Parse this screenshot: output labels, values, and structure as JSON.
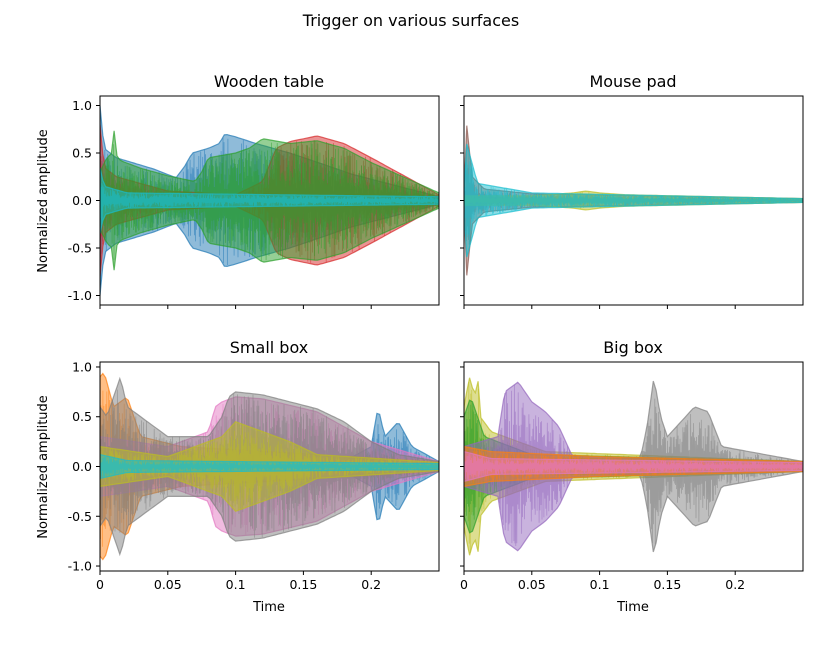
{
  "figure": {
    "suptitle": "Trigger on various surfaces"
  },
  "chart_data": [
    {
      "type": "line",
      "title": "Wooden table",
      "xlabel": "",
      "ylabel": "Normalized amplitude",
      "xlim": [
        0,
        0.25
      ],
      "ylim": [
        -1.1,
        1.1
      ],
      "xticks": [
        0,
        0.05,
        0.1,
        0.15,
        0.2
      ],
      "yticks": [
        -1.0,
        -0.5,
        0.0,
        0.5,
        1.0
      ],
      "show_x_tick_labels": false,
      "show_y_tick_labels": true,
      "series": [
        {
          "color": "#1f77b4",
          "envelope": {
            "x": [
              0,
              0.003,
              0.012,
              0.04,
              0.056,
              0.062,
              0.068,
              0.08,
              0.088,
              0.092,
              0.1,
              0.115,
              0.14,
              0.165,
              0.185,
              0.25
            ],
            "y": [
              1.0,
              0.55,
              0.45,
              0.33,
              0.24,
              0.35,
              0.5,
              0.55,
              0.6,
              0.7,
              0.67,
              0.6,
              0.5,
              0.38,
              0.28,
              0.04
            ]
          }
        },
        {
          "color": "#d62728",
          "envelope": {
            "x": [
              0,
              0.003,
              0.012,
              0.05,
              0.1,
              0.12,
              0.13,
              0.14,
              0.16,
              0.18,
              0.2,
              0.25
            ],
            "y": [
              0.8,
              0.35,
              0.25,
              0.1,
              0.06,
              0.2,
              0.55,
              0.62,
              0.68,
              0.6,
              0.45,
              0.06
            ]
          }
        },
        {
          "color": "#2ca02c",
          "envelope": {
            "x": [
              0,
              0.005,
              0.009,
              0.01,
              0.011,
              0.015,
              0.03,
              0.05,
              0.07,
              0.075,
              0.08,
              0.1,
              0.11,
              0.12,
              0.14,
              0.16,
              0.18,
              0.2,
              0.25
            ],
            "y": [
              0.3,
              0.45,
              0.5,
              0.9,
              0.5,
              0.42,
              0.34,
              0.26,
              0.2,
              0.3,
              0.45,
              0.5,
              0.55,
              0.65,
              0.6,
              0.63,
              0.55,
              0.4,
              0.08
            ]
          }
        },
        {
          "color": "#17becf",
          "envelope": {
            "x": [
              0,
              0.003,
              0.02,
              0.25
            ],
            "y": [
              0.35,
              0.15,
              0.08,
              0.04
            ]
          }
        }
      ]
    },
    {
      "type": "line",
      "title": "Mouse pad",
      "xlabel": "",
      "ylabel": "",
      "xlim": [
        0,
        0.25
      ],
      "ylim": [
        -1.1,
        1.1
      ],
      "xticks": [
        0,
        0.05,
        0.1,
        0.15,
        0.2
      ],
      "yticks": [
        -1.0,
        -0.5,
        0.0,
        0.5,
        1.0
      ],
      "show_x_tick_labels": false,
      "show_y_tick_labels": false,
      "series": [
        {
          "color": "#8c564b",
          "envelope": {
            "x": [
              0,
              0.002,
              0.006,
              0.015,
              0.05,
              0.25
            ],
            "y": [
              0.1,
              0.8,
              0.25,
              0.12,
              0.07,
              0.02
            ]
          }
        },
        {
          "color": "#bcbd22",
          "envelope": {
            "x": [
              0,
              0.05,
              0.08,
              0.09,
              0.1,
              0.12,
              0.25
            ],
            "y": [
              0.05,
              0.05,
              0.08,
              0.1,
              0.08,
              0.06,
              0.02
            ]
          }
        },
        {
          "color": "#17becf",
          "envelope": {
            "x": [
              0,
              0.002,
              0.01,
              0.05,
              0.25
            ],
            "y": [
              0.1,
              0.6,
              0.18,
              0.08,
              0.02
            ]
          }
        }
      ]
    },
    {
      "type": "line",
      "title": "Small box",
      "xlabel": "Time",
      "ylabel": "Normalized amplitude",
      "xlim": [
        0,
        0.25
      ],
      "ylim": [
        -1.05,
        1.05
      ],
      "xticks": [
        0,
        0.05,
        0.1,
        0.15,
        0.2
      ],
      "yticks": [
        -1.0,
        -0.5,
        0.0,
        0.5,
        1.0
      ],
      "show_x_tick_labels": true,
      "show_y_tick_labels": true,
      "series": [
        {
          "color": "#1f77b4",
          "envelope": {
            "x": [
              0,
              0.18,
              0.2,
              0.205,
              0.21,
              0.22,
              0.23,
              0.25
            ],
            "y": [
              0.05,
              0.05,
              0.2,
              0.6,
              0.3,
              0.45,
              0.2,
              0.05
            ]
          }
        },
        {
          "color": "#ff7f0e",
          "envelope": {
            "x": [
              0,
              0.003,
              0.01,
              0.02,
              0.03,
              0.06,
              0.25
            ],
            "y": [
              0.9,
              0.95,
              0.6,
              0.7,
              0.3,
              0.2,
              0.05
            ]
          }
        },
        {
          "color": "#e377c2",
          "envelope": {
            "x": [
              0,
              0.05,
              0.08,
              0.085,
              0.09,
              0.1,
              0.12,
              0.16,
              0.2,
              0.25
            ],
            "y": [
              0.3,
              0.2,
              0.35,
              0.6,
              0.65,
              0.7,
              0.68,
              0.55,
              0.25,
              0.05
            ]
          }
        },
        {
          "color": "#7f7f7f",
          "envelope": {
            "x": [
              0,
              0.005,
              0.015,
              0.02,
              0.05,
              0.08,
              0.09,
              0.095,
              0.1,
              0.12,
              0.14,
              0.16,
              0.18,
              0.2,
              0.22,
              0.25
            ],
            "y": [
              0.6,
              0.5,
              0.9,
              0.6,
              0.3,
              0.3,
              0.5,
              0.7,
              0.75,
              0.72,
              0.65,
              0.58,
              0.45,
              0.25,
              0.12,
              0.05
            ]
          }
        },
        {
          "color": "#bcbd22",
          "envelope": {
            "x": [
              0,
              0.05,
              0.09,
              0.1,
              0.12,
              0.14,
              0.16,
              0.25
            ],
            "y": [
              0.2,
              0.1,
              0.3,
              0.45,
              0.35,
              0.25,
              0.12,
              0.04
            ]
          }
        },
        {
          "color": "#17becf",
          "envelope": {
            "x": [
              0,
              0.02,
              0.25
            ],
            "y": [
              0.12,
              0.06,
              0.03
            ]
          }
        }
      ]
    },
    {
      "type": "line",
      "title": "Big box",
      "xlabel": "Time",
      "ylabel": "",
      "xlim": [
        0,
        0.25
      ],
      "ylim": [
        -1.05,
        1.05
      ],
      "xticks": [
        0,
        0.05,
        0.1,
        0.15,
        0.2
      ],
      "yticks": [
        -1.0,
        -0.5,
        0.0,
        0.5,
        1.0
      ],
      "show_x_tick_labels": true,
      "show_y_tick_labels": false,
      "series": [
        {
          "color": "#bcbd22",
          "envelope": {
            "x": [
              0,
              0.004,
              0.008,
              0.01,
              0.012,
              0.02,
              0.06,
              0.25
            ],
            "y": [
              0.6,
              0.9,
              0.7,
              0.95,
              0.5,
              0.35,
              0.15,
              0.05
            ]
          }
        },
        {
          "color": "#2ca02c",
          "envelope": {
            "x": [
              0,
              0.005,
              0.015,
              0.05,
              0.25
            ],
            "y": [
              0.5,
              0.7,
              0.3,
              0.12,
              0.05
            ]
          }
        },
        {
          "color": "#9467bd",
          "envelope": {
            "x": [
              0,
              0.025,
              0.03,
              0.04,
              0.05,
              0.06,
              0.07,
              0.08,
              0.25
            ],
            "y": [
              0.2,
              0.3,
              0.75,
              0.85,
              0.65,
              0.55,
              0.4,
              0.1,
              0.04
            ]
          }
        },
        {
          "color": "#7f7f7f",
          "envelope": {
            "x": [
              0,
              0.13,
              0.135,
              0.14,
              0.145,
              0.15,
              0.17,
              0.18,
              0.19,
              0.25
            ],
            "y": [
              0.08,
              0.08,
              0.4,
              0.9,
              0.5,
              0.3,
              0.6,
              0.55,
              0.2,
              0.05
            ]
          }
        },
        {
          "color": "#ff7f0e",
          "envelope": {
            "x": [
              0,
              0.02,
              0.1,
              0.25
            ],
            "y": [
              0.2,
              0.15,
              0.1,
              0.05
            ]
          }
        },
        {
          "color": "#e377c2",
          "envelope": {
            "x": [
              0,
              0.02,
              0.25
            ],
            "y": [
              0.15,
              0.08,
              0.04
            ]
          }
        }
      ]
    }
  ]
}
